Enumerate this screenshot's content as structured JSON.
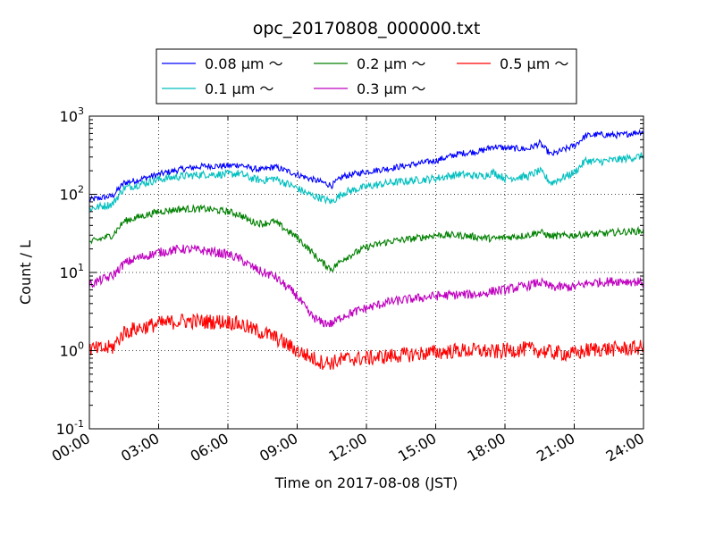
{
  "chart_data": {
    "type": "line",
    "title": "opc_20170808_000000.txt",
    "xlabel": "Time on 2017-08-08 (JST)",
    "ylabel": "Count / L",
    "y_scale": "log",
    "ylim": [
      0.1,
      1000
    ],
    "xlim": [
      "00:00",
      "24:00"
    ],
    "grid": true,
    "legend_position": "top",
    "x_ticks": [
      "00:00",
      "03:00",
      "06:00",
      "09:00",
      "12:00",
      "15:00",
      "18:00",
      "21:00",
      "24:00"
    ],
    "y_ticks": [
      {
        "base": "10",
        "exp": "-1",
        "value": 0.1
      },
      {
        "base": "10",
        "exp": "0",
        "value": 1
      },
      {
        "base": "10",
        "exp": "1",
        "value": 10
      },
      {
        "base": "10",
        "exp": "2",
        "value": 100
      },
      {
        "base": "10",
        "exp": "3",
        "value": 1000
      }
    ],
    "x": [
      "00:00",
      "00:30",
      "01:00",
      "01:30",
      "02:00",
      "03:00",
      "04:00",
      "05:00",
      "06:00",
      "06:30",
      "07:00",
      "07:30",
      "08:00",
      "09:00",
      "09:30",
      "10:00",
      "10:30",
      "11:00",
      "12:00",
      "13:00",
      "14:00",
      "15:00",
      "16:00",
      "17:00",
      "17:30",
      "18:00",
      "19:00",
      "19:30",
      "20:00",
      "21:00",
      "21:30",
      "22:00",
      "23:00",
      "24:00"
    ],
    "series": [
      {
        "name": "0.08 μm ～",
        "color": "#0000ff",
        "values": [
          85,
          90,
          95,
          140,
          150,
          180,
          210,
          230,
          230,
          240,
          215,
          205,
          225,
          180,
          160,
          145,
          130,
          170,
          195,
          215,
          240,
          270,
          330,
          360,
          410,
          390,
          380,
          450,
          320,
          420,
          560,
          580,
          570,
          640
        ]
      },
      {
        "name": "0.1 μm ～",
        "color": "#00bfbf",
        "values": [
          65,
          70,
          75,
          120,
          130,
          155,
          170,
          180,
          180,
          185,
          160,
          150,
          160,
          120,
          100,
          90,
          80,
          105,
          125,
          140,
          150,
          160,
          180,
          170,
          190,
          160,
          170,
          200,
          140,
          190,
          270,
          260,
          280,
          310
        ]
      },
      {
        "name": "0.2 μm ～",
        "color": "#008000",
        "values": [
          24,
          27,
          30,
          45,
          50,
          60,
          65,
          65,
          60,
          55,
          45,
          42,
          45,
          28,
          20,
          14,
          11,
          15,
          21,
          25,
          27,
          30,
          30,
          28,
          27,
          28,
          30,
          33,
          29,
          30,
          31,
          31,
          33,
          34
        ]
      },
      {
        "name": "0.3 μm ～",
        "color": "#bf00bf",
        "values": [
          7,
          8,
          9,
          13,
          15,
          18,
          20,
          19,
          17,
          15,
          12,
          10,
          9,
          5,
          3,
          2.3,
          2.2,
          2.8,
          3.5,
          4.2,
          4.6,
          5,
          5.2,
          5.3,
          5.8,
          6,
          6.8,
          7.5,
          6.5,
          6.5,
          7.2,
          7.5,
          7.8,
          7.5
        ]
      },
      {
        "name": "0.5 μm ～",
        "color": "#ff0000",
        "values": [
          1.05,
          1.05,
          1.1,
          1.7,
          1.9,
          2.2,
          2.4,
          2.35,
          2.35,
          2.2,
          1.9,
          1.7,
          1.5,
          1.0,
          0.85,
          0.72,
          0.7,
          0.78,
          0.8,
          0.85,
          0.9,
          0.95,
          1.0,
          1.0,
          0.95,
          1.0,
          1.05,
          1.0,
          0.95,
          0.9,
          1.0,
          1.05,
          1.05,
          1.1
        ]
      }
    ]
  }
}
